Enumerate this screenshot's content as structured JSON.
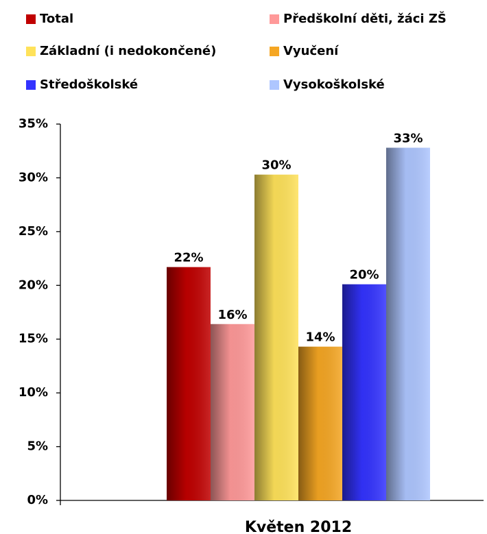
{
  "chart_data": {
    "type": "bar",
    "categories": [
      "Květen 2012"
    ],
    "series": [
      {
        "name": "Total",
        "color": "#c00000",
        "values": [
          21.7
        ],
        "value_labels": [
          "22%"
        ]
      },
      {
        "name": "Předškolní děti, žáci ZŠ",
        "color": "#ff9999",
        "values": [
          16.4
        ],
        "value_labels": [
          "16%"
        ]
      },
      {
        "name": "Základní (i nedokončené)",
        "color": "#ffe25a",
        "values": [
          30.3
        ],
        "value_labels": [
          "30%"
        ]
      },
      {
        "name": "Vyučení",
        "color": "#f5a623",
        "values": [
          14.3
        ],
        "value_labels": [
          "14%"
        ]
      },
      {
        "name": "Středoškolské",
        "color": "#3333ff",
        "values": [
          20.1
        ],
        "value_labels": [
          "20%"
        ]
      },
      {
        "name": "Vysokoškolské",
        "color": "#aec6ff",
        "values": [
          32.8
        ],
        "value_labels": [
          "33%"
        ]
      }
    ],
    "ylim": [
      0,
      35
    ],
    "yticks": [
      {
        "value": 0,
        "label": "0%"
      },
      {
        "value": 5,
        "label": "5%"
      },
      {
        "value": 10,
        "label": "10%"
      },
      {
        "value": 15,
        "label": "15%"
      },
      {
        "value": 20,
        "label": "20%"
      },
      {
        "value": 25,
        "label": "25%"
      },
      {
        "value": 30,
        "label": "30%"
      },
      {
        "value": 35,
        "label": "35%"
      }
    ],
    "legend": "top",
    "grid": false
  }
}
